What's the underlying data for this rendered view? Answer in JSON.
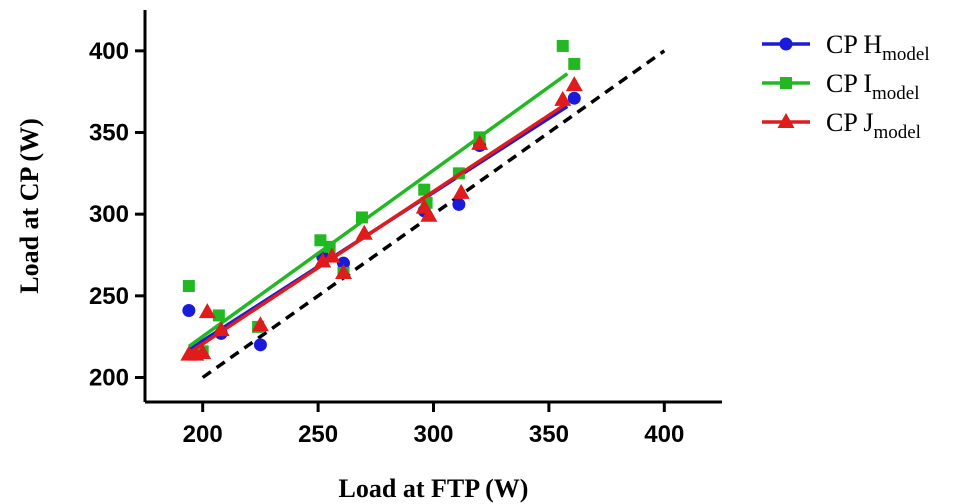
{
  "chart_data": {
    "type": "scatter",
    "xlabel": "Load at FTP (W)",
    "ylabel": "Load at CP (W)",
    "xlim": [
      175,
      425
    ],
    "ylim": [
      185,
      425
    ],
    "x_ticks": [
      200,
      250,
      300,
      350,
      400
    ],
    "y_ticks": [
      200,
      250,
      300,
      350,
      400
    ],
    "identity_line": {
      "style": "dashed",
      "color": "#000000",
      "from": [
        200,
        200
      ],
      "to": [
        400,
        400
      ]
    },
    "legend_position": "right",
    "series": [
      {
        "name": "CP H",
        "name_subscript": "model",
        "color": "#1a1adb",
        "marker": "circle",
        "points": [
          [
            194,
            241
          ],
          [
            196,
            216
          ],
          [
            198,
            218
          ],
          [
            208,
            227
          ],
          [
            225,
            220
          ],
          [
            252,
            274
          ],
          [
            261,
            270
          ],
          [
            296,
            302
          ],
          [
            311,
            306
          ],
          [
            320,
            342
          ],
          [
            361,
            371
          ]
        ],
        "fit": {
          "from": [
            194,
            217
          ],
          "to": [
            358,
            366
          ]
        }
      },
      {
        "name": "CP I",
        "name_subscript": "model",
        "color": "#22b822",
        "marker": "square",
        "points": [
          [
            194,
            256
          ],
          [
            200,
            216
          ],
          [
            207,
            238
          ],
          [
            224,
            231
          ],
          [
            251,
            284
          ],
          [
            255,
            280
          ],
          [
            261,
            264
          ],
          [
            269,
            298
          ],
          [
            296,
            315
          ],
          [
            297,
            307
          ],
          [
            311,
            325
          ],
          [
            320,
            347
          ],
          [
            356,
            403
          ],
          [
            361,
            392
          ]
        ],
        "fit": {
          "from": [
            194,
            219
          ],
          "to": [
            358,
            386
          ]
        }
      },
      {
        "name": "CP J",
        "name_subscript": "model",
        "color": "#e01b1b",
        "marker": "triangle",
        "points": [
          [
            194,
            214
          ],
          [
            197,
            214
          ],
          [
            200,
            215
          ],
          [
            202,
            240
          ],
          [
            208,
            229
          ],
          [
            225,
            232
          ],
          [
            252,
            271
          ],
          [
            256,
            274
          ],
          [
            261,
            264
          ],
          [
            270,
            288
          ],
          [
            296,
            304
          ],
          [
            298,
            299
          ],
          [
            312,
            313
          ],
          [
            320,
            343
          ],
          [
            356,
            370
          ],
          [
            361,
            379
          ]
        ],
        "fit": {
          "from": [
            194,
            215
          ],
          "to": [
            358,
            368
          ]
        }
      }
    ]
  }
}
